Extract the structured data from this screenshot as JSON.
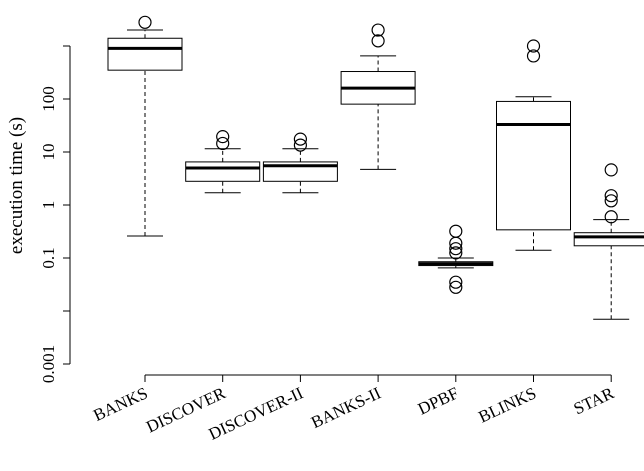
{
  "chart_data": {
    "type": "boxplot",
    "ylabel": "execution time (s)",
    "yscale": "log10",
    "ylim": [
      0.0005,
      3000
    ],
    "yticks": [
      0.001,
      0.1,
      1,
      10,
      100
    ],
    "ytick_labels": [
      "0.001",
      "0.1",
      "1",
      "10",
      "100"
    ],
    "categories": [
      "BANKS",
      "DISCOVER",
      "DISCOVER-II",
      "BANKS-II",
      "DPBF",
      "BLINKS",
      "STAR"
    ],
    "boxes": [
      {
        "name": "BANKS",
        "whisker_low": 0.26,
        "q1": 350,
        "median": 900,
        "q3": 1400,
        "whisker_high": 2000,
        "outliers": [
          2800
        ]
      },
      {
        "name": "DISCOVER",
        "whisker_low": 1.7,
        "q1": 2.8,
        "median": 5.0,
        "q3": 6.5,
        "whisker_high": 11.5,
        "outliers": [
          14.5,
          19.5
        ]
      },
      {
        "name": "DISCOVER-II",
        "whisker_low": 1.7,
        "q1": 2.8,
        "median": 5.5,
        "q3": 6.5,
        "whisker_high": 11.5,
        "outliers": [
          13.5,
          17.5
        ]
      },
      {
        "name": "BANKS-II",
        "whisker_low": 4.7,
        "q1": 80,
        "median": 160,
        "q3": 330,
        "whisker_high": 650,
        "outliers": [
          1250,
          2000
        ]
      },
      {
        "name": "DPBF",
        "whisker_low": 0.065,
        "q1": 0.072,
        "median": 0.078,
        "q3": 0.085,
        "whisker_high": 0.1,
        "outliers": [
          0.028,
          0.035,
          0.125,
          0.15,
          0.19,
          0.32
        ]
      },
      {
        "name": "BLINKS",
        "whisker_low": 0.14,
        "q1": 0.34,
        "median": 33,
        "q3": 90,
        "whisker_high": 110,
        "outliers": [
          650,
          1000
        ]
      },
      {
        "name": "STAR",
        "whisker_low": 0.007,
        "q1": 0.17,
        "median": 0.25,
        "q3": 0.3,
        "whisker_high": 0.53,
        "outliers": [
          0.6,
          1.2,
          1.5,
          4.6
        ]
      }
    ]
  }
}
